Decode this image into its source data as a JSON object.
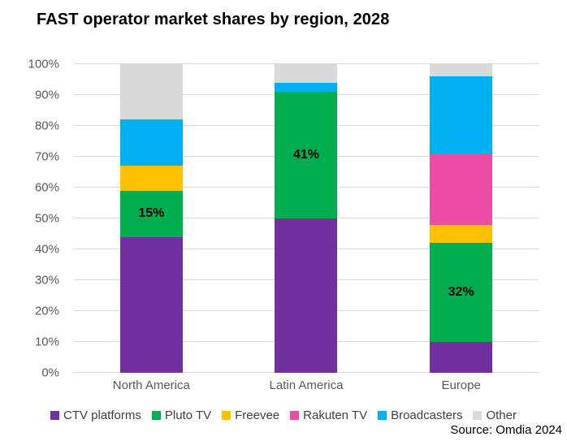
{
  "chart_data": {
    "type": "bar",
    "subtype": "stacked-100-percent",
    "title": "FAST operator market shares by region, 2028",
    "categories": [
      "North America",
      "Latin America",
      "Europe"
    ],
    "series": [
      {
        "name": "CTV platforms",
        "color": "#7030A0",
        "values": [
          44,
          50,
          10
        ]
      },
      {
        "name": "Pluto TV",
        "color": "#00AE4F",
        "values": [
          15,
          41,
          32
        ]
      },
      {
        "name": "Freevee",
        "color": "#FFC000",
        "values": [
          8,
          0,
          6
        ]
      },
      {
        "name": "Rakuten TV",
        "color": "#EC4CA4",
        "values": [
          0,
          0,
          23
        ]
      },
      {
        "name": "Broadcasters",
        "color": "#00B0F0",
        "values": [
          15,
          3,
          25
        ]
      },
      {
        "name": "Other",
        "color": "#D9D9D9",
        "values": [
          18,
          6,
          4
        ]
      }
    ],
    "data_labels": [
      {
        "series": "Pluto TV",
        "category": "North America",
        "text": "15%"
      },
      {
        "series": "Pluto TV",
        "category": "Latin America",
        "text": "41%"
      },
      {
        "series": "Pluto TV",
        "category": "Europe",
        "text": "32%"
      }
    ],
    "y_ticks": [
      "0%",
      "10%",
      "20%",
      "30%",
      "40%",
      "50%",
      "60%",
      "70%",
      "80%",
      "90%",
      "100%"
    ],
    "ylim": [
      0,
      100
    ],
    "grid": true,
    "legend_position": "bottom",
    "colors": {
      "grid": "#D9D9D9",
      "axis_text": "#595959",
      "legend_text": "#404040",
      "title_text": "#000000",
      "data_label_text": "#000000"
    },
    "source": "Source: Omdia 2024"
  }
}
